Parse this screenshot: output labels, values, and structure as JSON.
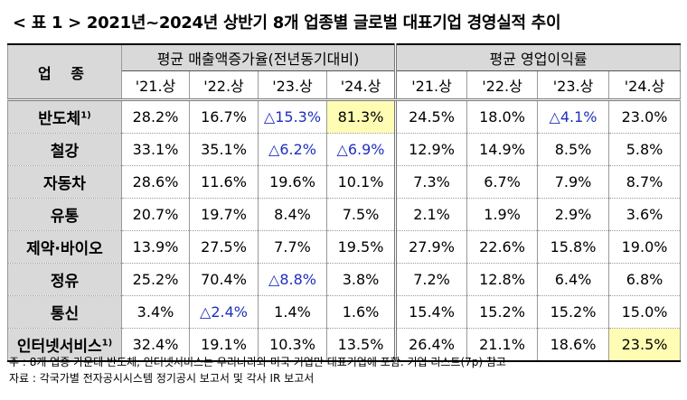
{
  "title": "< 표 1 > 2021년~2024년 상반기 8개 업종별 글로벌 대표기업 경영실적 추이",
  "header": {
    "sector_label": "업 종",
    "group_revenue": "평균 매출액증가율(전년동기대비)",
    "group_margin": "평균 영업이익률",
    "periods": [
      "'21.상",
      "'22.상",
      "'23.상",
      "'24.상"
    ]
  },
  "rows": [
    {
      "sector": "반도체",
      "note": "1)",
      "revenue": [
        "28.2%",
        "16.7%",
        "△15.3%",
        "81.3%"
      ],
      "margin": [
        "24.5%",
        "18.0%",
        "△4.1%",
        "23.0%"
      ]
    },
    {
      "sector": "철강",
      "note": "",
      "revenue": [
        "33.1%",
        "35.1%",
        "△6.2%",
        "△6.9%"
      ],
      "margin": [
        "12.9%",
        "14.9%",
        "8.5%",
        "5.8%"
      ]
    },
    {
      "sector": "자동차",
      "note": "",
      "revenue": [
        "28.6%",
        "11.6%",
        "19.6%",
        "10.1%"
      ],
      "margin": [
        "7.3%",
        "6.7%",
        "7.9%",
        "8.7%"
      ]
    },
    {
      "sector": "유통",
      "note": "",
      "revenue": [
        "20.7%",
        "19.7%",
        "8.4%",
        "7.5%"
      ],
      "margin": [
        "2.1%",
        "1.9%",
        "2.9%",
        "3.6%"
      ]
    },
    {
      "sector": "제약·바이오",
      "note": "",
      "revenue": [
        "13.9%",
        "27.5%",
        "7.7%",
        "19.5%"
      ],
      "margin": [
        "27.9%",
        "22.6%",
        "15.8%",
        "19.0%"
      ]
    },
    {
      "sector": "정유",
      "note": "",
      "revenue": [
        "25.2%",
        "70.4%",
        "△8.8%",
        "3.8%"
      ],
      "margin": [
        "7.2%",
        "12.8%",
        "6.4%",
        "6.8%"
      ]
    },
    {
      "sector": "통신",
      "note": "",
      "revenue": [
        "3.4%",
        "△2.4%",
        "1.4%",
        "1.6%"
      ],
      "margin": [
        "15.4%",
        "15.2%",
        "15.2%",
        "15.0%"
      ]
    },
    {
      "sector": "인터넷서비스",
      "note": "1)",
      "revenue": [
        "32.4%",
        "19.1%",
        "10.3%",
        "13.5%"
      ],
      "margin": [
        "26.4%",
        "21.1%",
        "18.6%",
        "23.5%"
      ]
    }
  ],
  "highlight_color": "#fffdb3",
  "negative_color": "#1f2fbf",
  "notes": [
    "주 : 8개 업종 가운데 반도체, 인터넷서비스는 우리나라와 미국 기업만 대표기업에 포함. 기업 리스트(7p) 참고",
    "자료 : 각국가별 전자공시시스템 정기공시 보고서 및 각사 IR 보고서"
  ]
}
